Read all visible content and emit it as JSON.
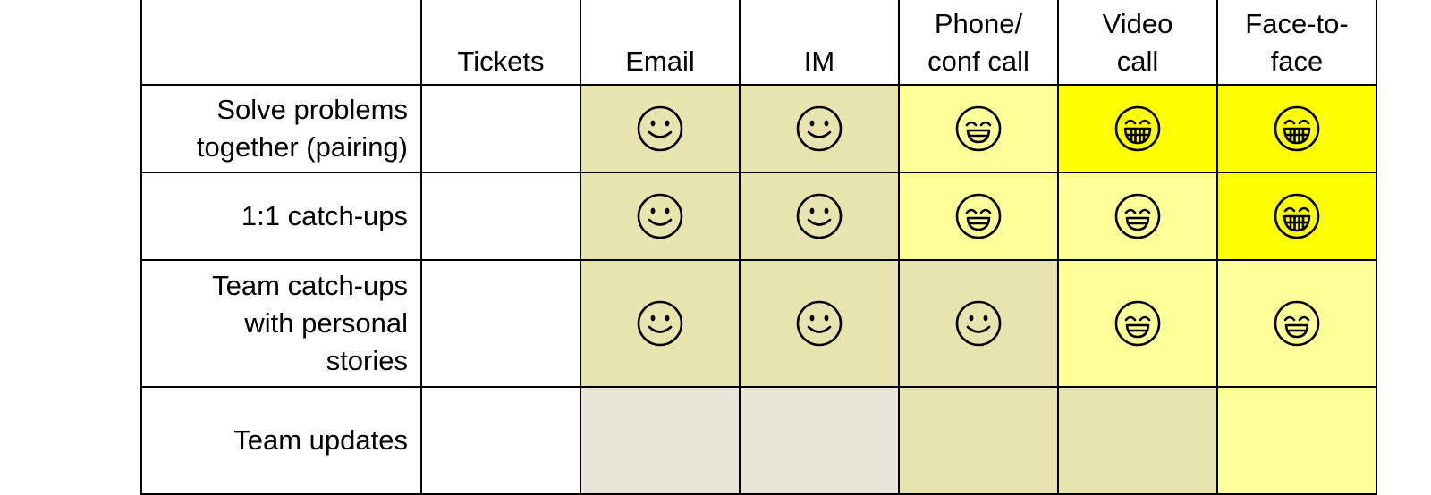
{
  "table": {
    "columns": [
      {
        "label": "",
        "key": "row-header"
      },
      {
        "label": "Tickets",
        "key": "tickets"
      },
      {
        "label": "Email",
        "key": "email"
      },
      {
        "label": "IM",
        "key": "im"
      },
      {
        "label": "Phone/\nconf call",
        "key": "phone"
      },
      {
        "label": "Video\ncall",
        "key": "video"
      },
      {
        "label": "Face-to-\nface",
        "key": "face-to-face"
      }
    ],
    "rows": [
      {
        "label": "Solve problems\ntogether (pairing)",
        "cells": [
          {
            "face": "none",
            "color": "#ffffff"
          },
          {
            "face": "smile",
            "color": "#e8e4b0"
          },
          {
            "face": "smile",
            "color": "#e8e4b0"
          },
          {
            "face": "grin",
            "color": "#ffff99"
          },
          {
            "face": "big-grin",
            "color": "#ffff00"
          },
          {
            "face": "big-grin",
            "color": "#ffff00"
          }
        ]
      },
      {
        "label": "1:1 catch-ups",
        "cells": [
          {
            "face": "none",
            "color": "#ffffff"
          },
          {
            "face": "smile",
            "color": "#e8e4b0"
          },
          {
            "face": "smile",
            "color": "#e8e4b0"
          },
          {
            "face": "grin",
            "color": "#ffff99"
          },
          {
            "face": "grin",
            "color": "#ffff99"
          },
          {
            "face": "big-grin",
            "color": "#ffff00"
          }
        ]
      },
      {
        "label": "Team catch-ups\nwith personal\nstories",
        "cells": [
          {
            "face": "none",
            "color": "#ffffff"
          },
          {
            "face": "smile",
            "color": "#e8e4b0"
          },
          {
            "face": "smile",
            "color": "#e8e4b0"
          },
          {
            "face": "smile",
            "color": "#e8e4b0"
          },
          {
            "face": "grin",
            "color": "#ffff99"
          },
          {
            "face": "grin",
            "color": "#ffff99"
          }
        ]
      },
      {
        "label": "Team updates",
        "cells": [
          {
            "face": "none",
            "color": "#ffffff"
          },
          {
            "face": "none",
            "color": "#e8e6d8"
          },
          {
            "face": "none",
            "color": "#e8e6d8"
          },
          {
            "face": "none",
            "color": "#e8e4b0"
          },
          {
            "face": "none",
            "color": "#e8e4b0"
          },
          {
            "face": "none",
            "color": "#ffff99"
          }
        ]
      }
    ]
  }
}
